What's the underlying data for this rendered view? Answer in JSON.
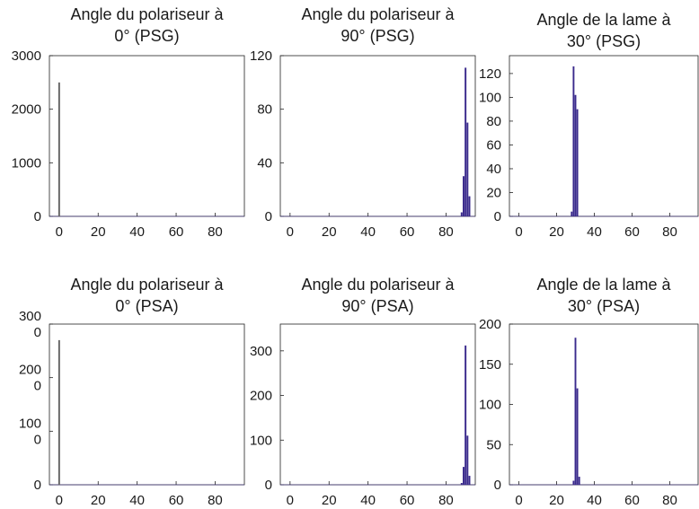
{
  "figure": {
    "background": "#ffffff",
    "axis_color": "#222222",
    "bar_color": "#3a2a8c"
  },
  "chart_data": [
    {
      "type": "bar",
      "title": [
        "Angle du polariseur à",
        "0° (PSG)"
      ],
      "xlim": [
        -5,
        95
      ],
      "xticks": [
        0,
        20,
        40,
        60,
        80
      ],
      "ylim": [
        0,
        3000
      ],
      "yticks": [
        0,
        1000,
        2000,
        3000
      ],
      "ytick_labels": [
        [
          "0"
        ],
        [
          "1000"
        ],
        [
          "2000"
        ],
        [
          "3000"
        ]
      ],
      "x": [
        0
      ],
      "values": [
        2500
      ]
    },
    {
      "type": "bar",
      "title": [
        "Angle du polariseur à",
        "90° (PSG)"
      ],
      "xlim": [
        -5,
        95
      ],
      "xticks": [
        0,
        20,
        40,
        60,
        80
      ],
      "ylim": [
        0,
        120
      ],
      "yticks": [
        0,
        40,
        80,
        120
      ],
      "ytick_labels": [
        [
          "0"
        ],
        [
          "40"
        ],
        [
          "80"
        ],
        [
          "120"
        ]
      ],
      "x": [
        88,
        89,
        90,
        91,
        92
      ],
      "values": [
        3,
        30,
        111,
        70,
        15
      ]
    },
    {
      "type": "bar",
      "title": [
        "Angle de la lame à",
        "30° (PSG)"
      ],
      "xlim": [
        -5,
        95
      ],
      "xticks": [
        0,
        20,
        40,
        60,
        80
      ],
      "ylim": [
        0,
        135
      ],
      "yticks": [
        0,
        20,
        40,
        60,
        80,
        100,
        120
      ],
      "ytick_labels": [
        [
          "0"
        ],
        [
          "20"
        ],
        [
          "40"
        ],
        [
          "60"
        ],
        [
          "80"
        ],
        [
          "100"
        ],
        [
          "120"
        ]
      ],
      "x": [
        28,
        29,
        30,
        31
      ],
      "values": [
        4,
        126,
        102,
        90
      ]
    },
    {
      "type": "bar",
      "title": [
        "Angle du polariseur à",
        "0° (PSA)"
      ],
      "xlim": [
        -5,
        95
      ],
      "xticks": [
        0,
        20,
        40,
        60,
        80
      ],
      "ylim": [
        0,
        3000
      ],
      "yticks": [
        0,
        1000,
        2000,
        3000
      ],
      "ytick_labels": [
        [
          "0"
        ],
        [
          "100",
          "0"
        ],
        [
          "200",
          "0"
        ],
        [
          "300",
          "0"
        ]
      ],
      "x": [
        0
      ],
      "values": [
        2700
      ]
    },
    {
      "type": "bar",
      "title": [
        "Angle du polariseur à",
        "90° (PSA)"
      ],
      "xlim": [
        -5,
        95
      ],
      "xticks": [
        0,
        20,
        40,
        60,
        80
      ],
      "ylim": [
        0,
        360
      ],
      "yticks": [
        0,
        100,
        200,
        300
      ],
      "ytick_labels": [
        [
          "0"
        ],
        [
          "100"
        ],
        [
          "200"
        ],
        [
          "300"
        ]
      ],
      "x": [
        88,
        89,
        90,
        91,
        92
      ],
      "values": [
        4,
        40,
        312,
        110,
        20
      ]
    },
    {
      "type": "bar",
      "title": [
        "Angle de la lame à",
        "30° (PSA)"
      ],
      "xlim": [
        -5,
        95
      ],
      "xticks": [
        0,
        20,
        40,
        60,
        80
      ],
      "ylim": [
        0,
        200
      ],
      "yticks": [
        0,
        50,
        100,
        150,
        200
      ],
      "ytick_labels": [
        [
          "0"
        ],
        [
          "50"
        ],
        [
          "100"
        ],
        [
          "150"
        ],
        [
          "200"
        ]
      ],
      "x": [
        29,
        30,
        31,
        32
      ],
      "values": [
        5,
        183,
        120,
        10
      ]
    }
  ]
}
